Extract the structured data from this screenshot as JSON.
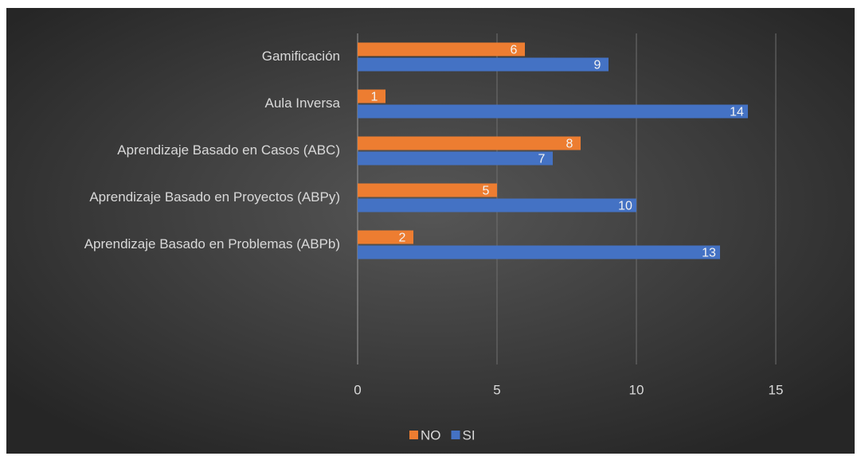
{
  "chart_data": {
    "type": "bar",
    "orientation": "horizontal",
    "categories": [
      "Gamificación",
      "Aula Inversa",
      "Aprendizaje Basado en Casos (ABC)",
      "Aprendizaje Basado en Proyectos (ABPy)",
      "Aprendizaje Basado en Problemas (ABPb)",
      null,
      null
    ],
    "series": [
      {
        "name": "NO",
        "color": "#ed7d31",
        "values": [
          6,
          1,
          8,
          5,
          2,
          null,
          null
        ]
      },
      {
        "name": "SI",
        "color": "#4472c4",
        "values": [
          9,
          14,
          7,
          10,
          13,
          null,
          null
        ]
      }
    ],
    "xlim": [
      0,
      17.5
    ],
    "xticks": [
      0,
      5,
      10,
      15
    ],
    "grid": true,
    "legend": "bottom"
  }
}
